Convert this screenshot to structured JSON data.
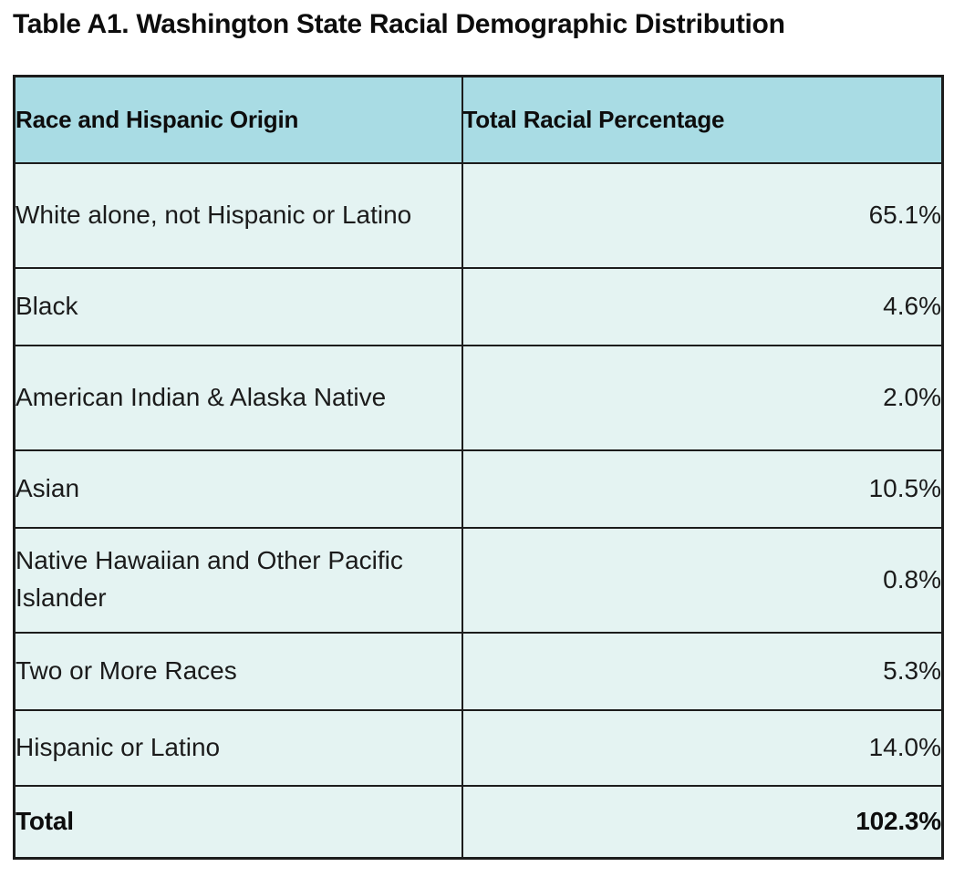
{
  "title": "Table A1. Washington State Racial Demographic Distribution",
  "table": {
    "columns": {
      "race": "Race and Hispanic Origin",
      "percentage": "Total Racial Percentage"
    },
    "rows": [
      {
        "label": "White alone, not Hispanic or Latino",
        "value": "65.1%"
      },
      {
        "label": "Black",
        "value": "4.6%"
      },
      {
        "label": "American Indian & Alaska Native",
        "value": "2.0%"
      },
      {
        "label": "Asian",
        "value": "10.5%"
      },
      {
        "label": "Native Hawaiian and Other Pacific Islander",
        "value": "0.8%"
      },
      {
        "label": "Two or More Races",
        "value": "5.3%"
      },
      {
        "label": "Hispanic or Latino",
        "value": "14.0%"
      }
    ],
    "total_row": {
      "label": "Total",
      "value": "102.3%"
    }
  },
  "colors": {
    "header_bg": "#a9dce4",
    "row_bg": "#e4f3f2",
    "border": "#1c1c1c",
    "text": "#1b1b1b"
  }
}
